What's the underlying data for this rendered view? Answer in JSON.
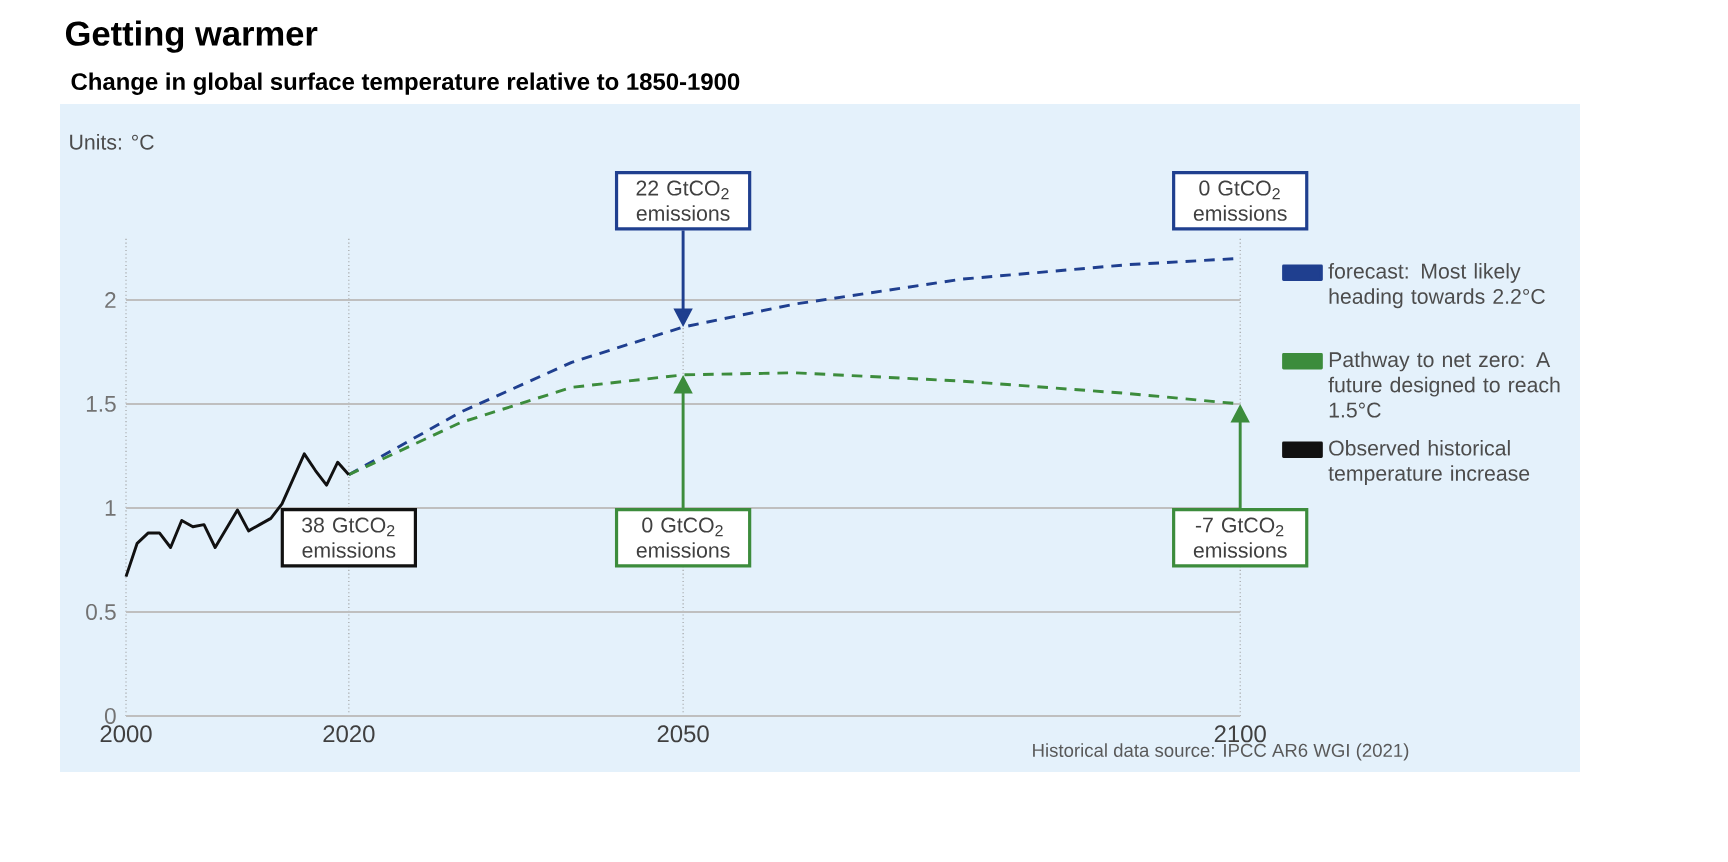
{
  "chart_data": {
    "type": "line",
    "title": "Getting warmer",
    "subtitle": "Change in global surface temperature relative to 1850-1900",
    "ylabel": "Units: °C",
    "xlim": [
      2000,
      2100
    ],
    "ylim": [
      0,
      2.3
    ],
    "xticks": [
      2000,
      2020,
      2050,
      2100
    ],
    "yticks": [
      0,
      0.5,
      1,
      1.5,
      2
    ],
    "grid": true,
    "legend": "right",
    "series": [
      {
        "name": "forecast: Most likely heading towards 2.2°C",
        "color": "#1f3f8f",
        "line_style": "dashed",
        "x": [
          2020,
          2030,
          2040,
          2050,
          2060,
          2075,
          2090,
          2100
        ],
        "values": [
          1.16,
          1.46,
          1.7,
          1.87,
          1.98,
          2.1,
          2.17,
          2.2
        ]
      },
      {
        "name": "Pathway to net zero: A future designed to reach 1.5°C",
        "color": "#3c8c3c",
        "line_style": "dashed",
        "x": [
          2020,
          2030,
          2040,
          2050,
          2060,
          2075,
          2090,
          2100
        ],
        "values": [
          1.16,
          1.41,
          1.58,
          1.64,
          1.65,
          1.61,
          1.55,
          1.5
        ]
      },
      {
        "name": "Observed historical temperature increase",
        "color": "#111111",
        "line_style": "solid",
        "x": [
          2000,
          2001,
          2002,
          2003,
          2004,
          2005,
          2006,
          2007,
          2008,
          2009,
          2010,
          2011,
          2012,
          2013,
          2014,
          2015,
          2016,
          2017,
          2018,
          2019,
          2020
        ],
        "values": [
          0.67,
          0.83,
          0.88,
          0.88,
          0.81,
          0.94,
          0.91,
          0.92,
          0.81,
          0.9,
          0.99,
          0.89,
          0.92,
          0.95,
          1.02,
          1.14,
          1.26,
          1.18,
          1.11,
          1.22,
          1.16
        ]
      }
    ],
    "annotations": [
      {
        "text": "22 GtCO$_{2}$ emissions",
        "x": 2050,
        "y": 1.87
      },
      {
        "text": "0 GtCO$_{2}$ emissions",
        "x": 2100,
        "y": 2.2
      },
      {
        "text": "38 GtCO$_{2}$ emissions",
        "x": 2020,
        "y": 1.16
      },
      {
        "text": "0 GtCO$_{2}$ emissions",
        "x": 2050,
        "y": 1.64
      },
      {
        "text": "-7 GtCO$_{2}$ emissions",
        "x": 2100,
        "y": 1.5
      },
      "Historical data source: IPCC AR6 WGI (2021)"
    ]
  }
}
